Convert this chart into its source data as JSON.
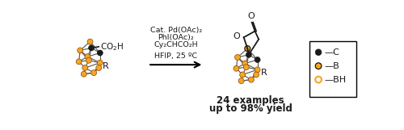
{
  "bg_color": "#ffffff",
  "orange": "#F5A623",
  "black": "#1a1a1a",
  "gray": "#555555",
  "reaction_text_lines": [
    "Cat. Pd(OAc)₂",
    "PhI(OAc)₂",
    "Cy₂CHCO₂H",
    "HFIP, 25 ºC"
  ],
  "below_product_lines": [
    "24 examples",
    "up to 98% yield"
  ],
  "legend_items": [
    {
      "label": "—C",
      "color": "#1a1a1a",
      "filled": true,
      "open": false
    },
    {
      "label": "—B",
      "color": "#F5A623",
      "filled": true,
      "open": false
    },
    {
      "label": "—BH",
      "color": "#F5A623",
      "filled": false,
      "open": true
    }
  ],
  "figsize": [
    5.0,
    1.61
  ],
  "dpi": 100
}
